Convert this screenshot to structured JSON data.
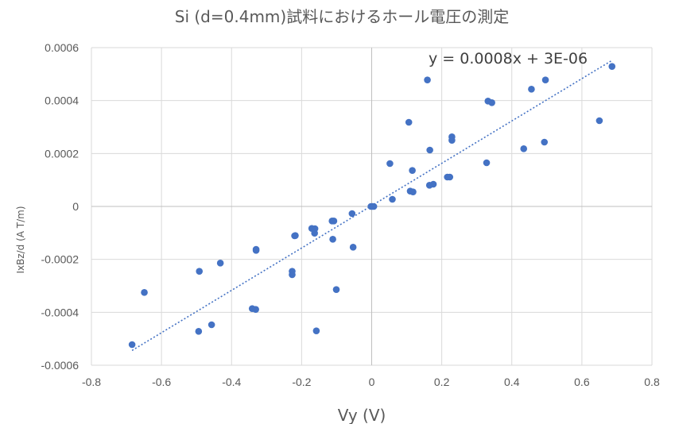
{
  "chart_data": {
    "type": "scatter",
    "title": "Si (d=0.4mm)試料におけるホール電圧の測定",
    "xlabel": "Vy (V)",
    "ylabel": "IxBz/d (A T/m)",
    "xlim": [
      -0.8,
      0.8
    ],
    "ylim": [
      -0.0006,
      0.0006
    ],
    "x_ticks": [
      "-0.8",
      "-0.6",
      "-0.4",
      "-0.2",
      "0",
      "0.2",
      "0.4",
      "0.6",
      "0.8"
    ],
    "y_ticks": [
      "0.0006",
      "0.0004",
      "0.0002",
      "0",
      "-0.0002",
      "-0.0004",
      "-0.0006"
    ],
    "grid": true,
    "legend": "none",
    "series": [
      {
        "color": "#4472c4",
        "points": [
          {
            "x": 0.686,
            "y": 0.000529
          },
          {
            "x": 0.159,
            "y": 0.000478
          },
          {
            "x": 0.496,
            "y": 0.000478
          },
          {
            "x": 0.456,
            "y": 0.000443
          },
          {
            "x": 0.332,
            "y": 0.000398
          },
          {
            "x": 0.343,
            "y": 0.000392
          },
          {
            "x": 0.106,
            "y": 0.000318
          },
          {
            "x": 0.65,
            "y": 0.000324
          },
          {
            "x": 0.229,
            "y": 0.000263
          },
          {
            "x": 0.229,
            "y": 0.00025
          },
          {
            "x": 0.493,
            "y": 0.000243
          },
          {
            "x": 0.434,
            "y": 0.000218
          },
          {
            "x": 0.166,
            "y": 0.000213
          },
          {
            "x": 0.052,
            "y": 0.000162
          },
          {
            "x": 0.328,
            "y": 0.000165
          },
          {
            "x": 0.116,
            "y": 0.000136
          },
          {
            "x": 0.216,
            "y": 0.000111
          },
          {
            "x": 0.223,
            "y": 0.000111
          },
          {
            "x": 0.176,
            "y": 8.4e-05
          },
          {
            "x": 0.165,
            "y": 8e-05
          },
          {
            "x": 0.11,
            "y": 5.8e-05
          },
          {
            "x": 0.118,
            "y": 5.5e-05
          },
          {
            "x": 0.059,
            "y": 2.7e-05
          },
          {
            "x": -0.002,
            "y": 0.0
          },
          {
            "x": 0.006,
            "y": 0.0
          },
          {
            "x": 0.002,
            "y": 0.0
          },
          {
            "x": -0.056,
            "y": -2.7e-05
          },
          {
            "x": -0.113,
            "y": -5.5e-05
          },
          {
            "x": -0.108,
            "y": -5.5e-05
          },
          {
            "x": -0.171,
            "y": -8.3e-05
          },
          {
            "x": -0.162,
            "y": -8.4e-05
          },
          {
            "x": -0.163,
            "y": -0.000101
          },
          {
            "x": -0.218,
            "y": -0.00011
          },
          {
            "x": -0.22,
            "y": -0.000111
          },
          {
            "x": -0.111,
            "y": -0.000124
          },
          {
            "x": -0.33,
            "y": -0.000162
          },
          {
            "x": -0.33,
            "y": -0.000166
          },
          {
            "x": -0.053,
            "y": -0.000154
          },
          {
            "x": -0.432,
            "y": -0.000214
          },
          {
            "x": -0.492,
            "y": -0.000245
          },
          {
            "x": -0.227,
            "y": -0.000245
          },
          {
            "x": -0.227,
            "y": -0.000258
          },
          {
            "x": -0.101,
            "y": -0.000314
          },
          {
            "x": -0.649,
            "y": -0.000325
          },
          {
            "x": -0.341,
            "y": -0.000386
          },
          {
            "x": -0.331,
            "y": -0.000389
          },
          {
            "x": -0.457,
            "y": -0.000447
          },
          {
            "x": -0.494,
            "y": -0.000472
          },
          {
            "x": -0.158,
            "y": -0.00047
          },
          {
            "x": -0.684,
            "y": -0.000522
          }
        ]
      }
    ],
    "trendline": {
      "type": "linear",
      "slope": 0.0008,
      "intercept": 3e-06,
      "x_range": [
        -0.684,
        0.686
      ],
      "equation": "y = 0.0008x + 3E-06",
      "color": "#4472c4"
    }
  }
}
